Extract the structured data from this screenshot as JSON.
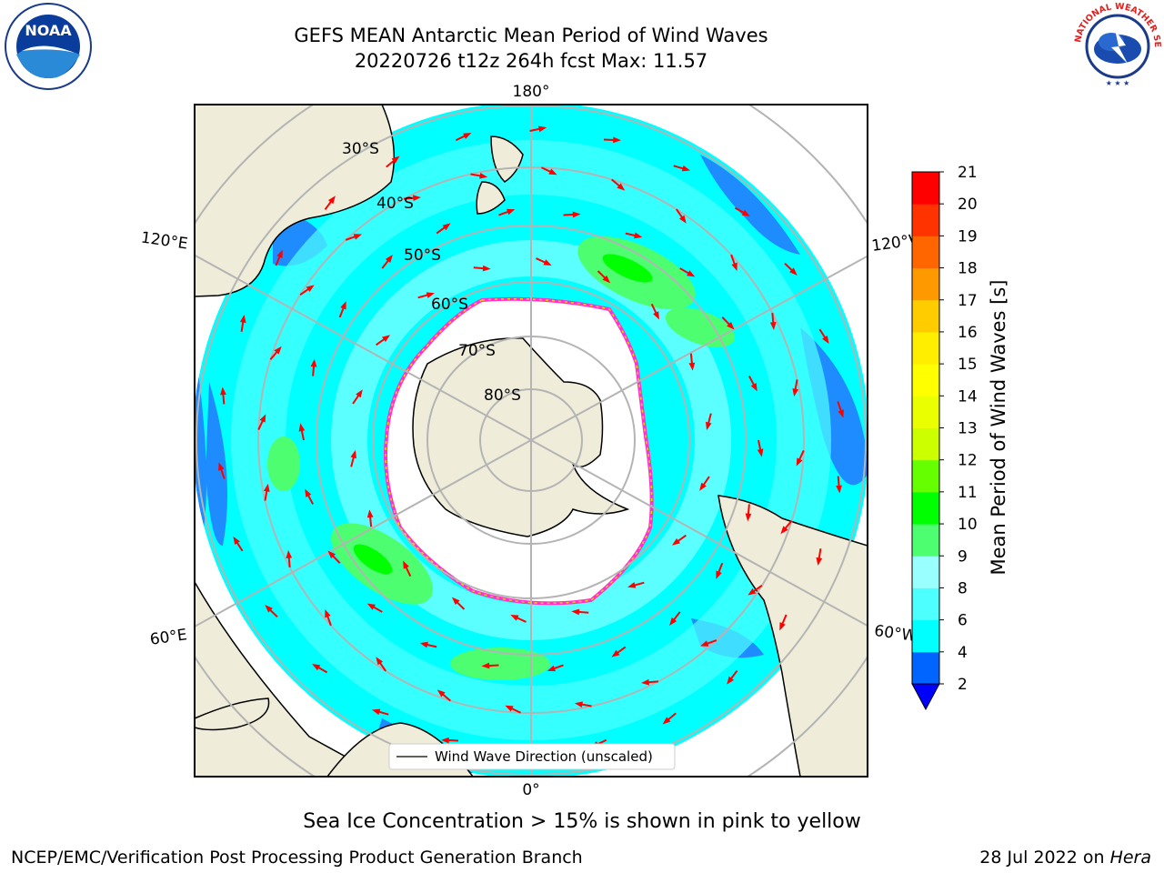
{
  "title": {
    "line1": "GEFS MEAN Antarctic Mean Period of Wind Waves",
    "line2": "20220726 t12z 264h fcst   Max: 11.57"
  },
  "logos": {
    "left": {
      "name": "noaa-logo",
      "text": "NOAA"
    },
    "right": {
      "name": "nws-logo",
      "text": "NATIONAL WEATHER SERVICE"
    }
  },
  "map": {
    "longitude_labels": {
      "top": "180°",
      "bottom": "0°",
      "left_upper": "120°E",
      "left_lower": "60°E",
      "right_upper": "120°W",
      "right_lower": "60°W"
    },
    "latitude_labels": [
      "30°S",
      "40°S",
      "50°S",
      "60°S",
      "70°S",
      "80°S"
    ],
    "legend_label": "Wind Wave Direction (unscaled)",
    "colors": {
      "land": "#efedd9",
      "ocean_low": "#00ffff",
      "ocean_mid": "#4dffff",
      "ocean_blue": "#1e8cff",
      "ice": "#ffffff",
      "ice_edge": "#ff33cc",
      "arrow": "#ff0000",
      "grid": "#b4b4b4"
    }
  },
  "colorbar": {
    "label": "Mean Period of Wind Waves [s]",
    "ticks": [
      "2",
      "4",
      "6",
      "8",
      "9",
      "10",
      "11",
      "12",
      "13",
      "14",
      "15",
      "16",
      "17",
      "18",
      "19",
      "20",
      "21"
    ],
    "colors": [
      "#0064ff",
      "#00ffff",
      "#4dffff",
      "#99ffff",
      "#4dff70",
      "#00ff00",
      "#66ff00",
      "#ccff00",
      "#eaff00",
      "#ffff00",
      "#ffee00",
      "#ffcc00",
      "#ff9900",
      "#ff6600",
      "#ff3300",
      "#ff0000"
    ],
    "extend_color": "#0000ff"
  },
  "sea_ice_note": "Sea Ice Concentration > 15% is shown in pink to yellow",
  "footer": {
    "left": "NCEP/EMC/Verification Post Processing Product Generation Branch",
    "right_prefix": "28 Jul 2022 on ",
    "right_machine": "Hera"
  }
}
